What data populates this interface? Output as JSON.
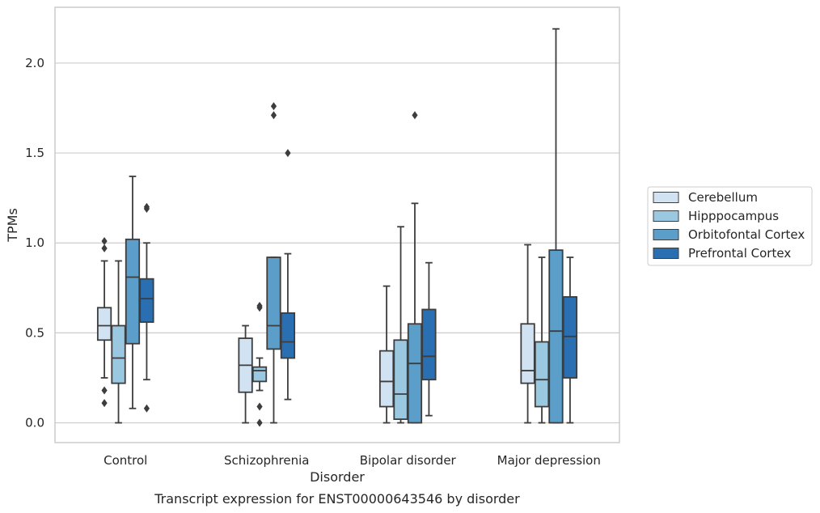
{
  "chart_data": {
    "type": "box",
    "title": "",
    "caption": "Transcript expression for ENST00000643546 by disorder",
    "xlabel": "Disorder",
    "ylabel": "TPMs",
    "ylim": [
      -0.11,
      2.31
    ],
    "yticks": [
      "0.0",
      "0.5",
      "1.0",
      "1.5",
      "2.0"
    ],
    "grid": "horizontal",
    "legend_placement": "right-outside",
    "categories": [
      "Control",
      "Schizophrenia",
      "Bipolar disorder",
      "Major depression"
    ],
    "series": [
      {
        "name": "Cerebellum",
        "color": "#d1e2f2",
        "boxes": [
          {
            "whisker_low": 0.25,
            "q1": 0.46,
            "median": 0.54,
            "q3": 0.64,
            "whisker_high": 0.9,
            "outliers": [
              1.01,
              0.97,
              0.18,
              0.11
            ]
          },
          {
            "whisker_low": 0.0,
            "q1": 0.17,
            "median": 0.32,
            "q3": 0.47,
            "whisker_high": 0.54,
            "outliers": []
          },
          {
            "whisker_low": 0.0,
            "q1": 0.09,
            "median": 0.23,
            "q3": 0.4,
            "whisker_high": 0.76,
            "outliers": []
          },
          {
            "whisker_low": 0.0,
            "q1": 0.22,
            "median": 0.29,
            "q3": 0.55,
            "whisker_high": 0.99,
            "outliers": []
          }
        ]
      },
      {
        "name": "Hipppocampus",
        "color": "#9ac8e0",
        "boxes": [
          {
            "whisker_low": 0.0,
            "q1": 0.22,
            "median": 0.36,
            "q3": 0.54,
            "whisker_high": 0.9,
            "outliers": []
          },
          {
            "whisker_low": 0.18,
            "q1": 0.23,
            "median": 0.29,
            "q3": 0.31,
            "whisker_high": 0.36,
            "outliers": [
              0.65,
              0.64,
              0.09,
              0.0
            ]
          },
          {
            "whisker_low": 0.0,
            "q1": 0.02,
            "median": 0.16,
            "q3": 0.46,
            "whisker_high": 1.09,
            "outliers": []
          },
          {
            "whisker_low": 0.0,
            "q1": 0.09,
            "median": 0.24,
            "q3": 0.45,
            "whisker_high": 0.92,
            "outliers": []
          }
        ]
      },
      {
        "name": "Orbitofontal Cortex",
        "color": "#5b9ec9",
        "boxes": [
          {
            "whisker_low": 0.08,
            "q1": 0.44,
            "median": 0.81,
            "q3": 1.02,
            "whisker_high": 1.37,
            "outliers": []
          },
          {
            "whisker_low": 0.0,
            "q1": 0.41,
            "median": 0.54,
            "q3": 0.92,
            "whisker_high": 0.92,
            "outliers": [
              1.76,
              1.71
            ]
          },
          {
            "whisker_low": 0.0,
            "q1": 0.0,
            "median": 0.33,
            "q3": 0.55,
            "whisker_high": 1.22,
            "outliers": [
              1.71
            ]
          },
          {
            "whisker_low": 0.0,
            "q1": 0.0,
            "median": 0.51,
            "q3": 0.96,
            "whisker_high": 2.19,
            "outliers": []
          }
        ]
      },
      {
        "name": "Prefrontal Cortex",
        "color": "#2a6fb2",
        "boxes": [
          {
            "whisker_low": 0.24,
            "q1": 0.56,
            "median": 0.69,
            "q3": 0.8,
            "whisker_high": 1.0,
            "outliers": [
              1.2,
              1.19,
              0.08
            ]
          },
          {
            "whisker_low": 0.13,
            "q1": 0.36,
            "median": 0.45,
            "q3": 0.61,
            "whisker_high": 0.94,
            "outliers": [
              1.5
            ]
          },
          {
            "whisker_low": 0.04,
            "q1": 0.24,
            "median": 0.37,
            "q3": 0.63,
            "whisker_high": 0.89,
            "outliers": []
          },
          {
            "whisker_low": 0.0,
            "q1": 0.25,
            "median": 0.48,
            "q3": 0.7,
            "whisker_high": 0.92,
            "outliers": []
          }
        ]
      }
    ]
  }
}
